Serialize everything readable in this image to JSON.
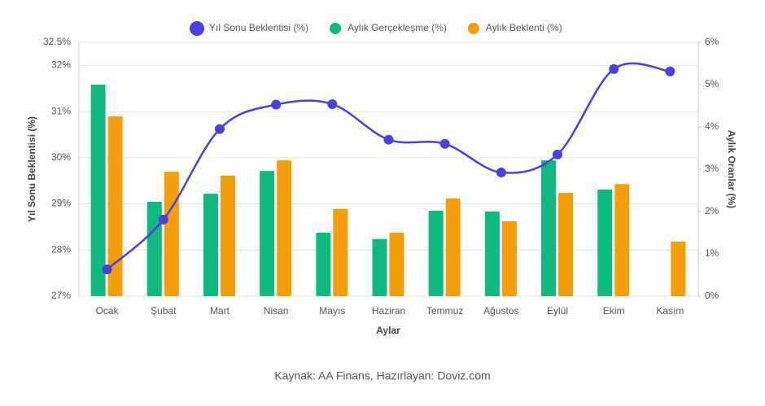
{
  "chart_data": {
    "type": "bar-line",
    "categories": [
      "Ocak",
      "Şubat",
      "Mart",
      "Nisan",
      "Mayıs",
      "Haziran",
      "Temmuz",
      "Ağustos",
      "Eylül",
      "Ekim",
      "Kasım"
    ],
    "series": [
      {
        "name": "Yıl Sonu Beklentisi (%)",
        "color": "#4b3fe0",
        "type": "line",
        "axis": "y",
        "values": [
          27.58,
          28.66,
          30.62,
          31.15,
          31.16,
          30.39,
          30.3,
          29.68,
          30.07,
          31.92,
          31.87
        ]
      },
      {
        "name": "Aylık Gerçekleşme (%)",
        "color": "#10b981",
        "type": "bar",
        "axis": "y2",
        "values": [
          5.0,
          2.23,
          2.42,
          2.96,
          1.5,
          1.35,
          2.02,
          2.0,
          3.21,
          2.52,
          null
        ]
      },
      {
        "name": "Aylık Beklenti (%)",
        "color": "#f59e0b",
        "type": "bar",
        "axis": "y2",
        "values": [
          4.25,
          2.94,
          2.85,
          3.21,
          2.06,
          1.5,
          2.31,
          1.77,
          2.44,
          2.65,
          1.29
        ]
      }
    ],
    "ylim": [
      27,
      32.5
    ],
    "yticks": [
      {
        "value": 27,
        "label": "27%"
      },
      {
        "value": 28,
        "label": "28%"
      },
      {
        "value": 29,
        "label": "29%"
      },
      {
        "value": 30,
        "label": "30%"
      },
      {
        "value": 31,
        "label": "31%"
      },
      {
        "value": 32,
        "label": "32%"
      },
      {
        "value": 32.5,
        "label": "32.5%"
      }
    ],
    "y2lim": [
      0,
      6
    ],
    "y2ticks": [
      {
        "value": 0,
        "label": "0%"
      },
      {
        "value": 1,
        "label": "1%"
      },
      {
        "value": 2,
        "label": "2%"
      },
      {
        "value": 3,
        "label": "3%"
      },
      {
        "value": 4,
        "label": "4%"
      },
      {
        "value": 5,
        "label": "5%"
      },
      {
        "value": 6,
        "label": "6%"
      }
    ],
    "y_label": "Yıl Sonu Beklentisi (%)",
    "y2_label": "Aylık Oranlar (%)",
    "x_label": "Aylar",
    "source": "Kaynak: AA Finans, Hazırlayan: Doviz.com",
    "grid": true,
    "legend": "top"
  }
}
